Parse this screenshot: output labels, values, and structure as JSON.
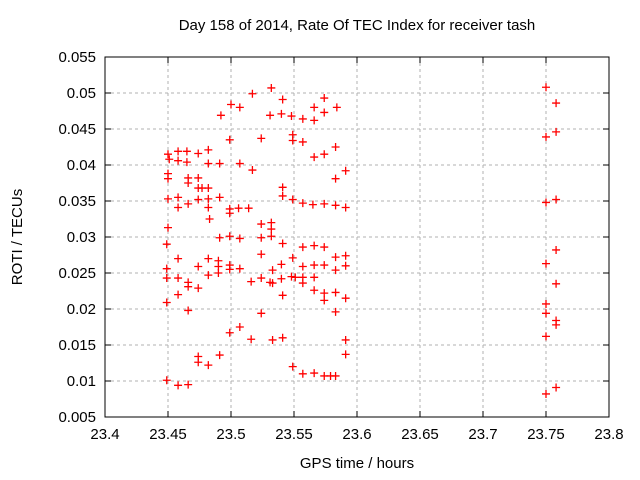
{
  "window": {
    "background": "#ffffff"
  },
  "chart_data": {
    "type": "scatter",
    "title": "Day 158 of 2014, Rate Of TEC Index for receiver tash",
    "xlabel": "GPS time / hours",
    "ylabel": "ROTI / TECUs",
    "xlim": [
      23.4,
      23.8
    ],
    "ylim": [
      0.005,
      0.055
    ],
    "grid": true,
    "legend": "none",
    "marker": "plus",
    "colors": {
      "marker": "#ff0000",
      "grid": "#b0b0b0",
      "frame": "#000000",
      "text": "#000000",
      "background": "#ffffff"
    },
    "xticks": [
      {
        "value": 23.4,
        "label": "23.4"
      },
      {
        "value": 23.45,
        "label": "23.45"
      },
      {
        "value": 23.5,
        "label": "23.5"
      },
      {
        "value": 23.55,
        "label": "23.55"
      },
      {
        "value": 23.6,
        "label": "23.6"
      },
      {
        "value": 23.65,
        "label": "23.65"
      },
      {
        "value": 23.7,
        "label": "23.7"
      },
      {
        "value": 23.75,
        "label": "23.75"
      },
      {
        "value": 23.8,
        "label": "23.8"
      }
    ],
    "yticks": [
      {
        "value": 0.005,
        "label": "0.005"
      },
      {
        "value": 0.01,
        "label": "0.01"
      },
      {
        "value": 0.015,
        "label": "0.015"
      },
      {
        "value": 0.02,
        "label": "0.02"
      },
      {
        "value": 0.025,
        "label": "0.025"
      },
      {
        "value": 0.03,
        "label": "0.03"
      },
      {
        "value": 0.035,
        "label": "0.035"
      },
      {
        "value": 0.04,
        "label": "0.04"
      },
      {
        "value": 0.045,
        "label": "0.045"
      },
      {
        "value": 0.05,
        "label": "0.05"
      },
      {
        "value": 0.055,
        "label": "0.055"
      }
    ],
    "series": [
      {
        "points": [
          [
            23.517,
            0.0499
          ],
          [
            23.5,
            0.0484
          ],
          [
            23.507,
            0.048
          ],
          [
            23.492,
            0.0469
          ],
          [
            23.499,
            0.0435
          ],
          [
            23.45,
            0.0415
          ],
          [
            23.458,
            0.0419
          ],
          [
            23.465,
            0.0419
          ],
          [
            23.474,
            0.0416
          ],
          [
            23.482,
            0.0421
          ],
          [
            23.451,
            0.0408
          ],
          [
            23.458,
            0.0406
          ],
          [
            23.465,
            0.0404
          ],
          [
            23.482,
            0.0402
          ],
          [
            23.491,
            0.0402
          ],
          [
            23.507,
            0.0402
          ],
          [
            23.517,
            0.0393
          ],
          [
            23.45,
            0.0388
          ],
          [
            23.45,
            0.0381
          ],
          [
            23.466,
            0.0382
          ],
          [
            23.466,
            0.0375
          ],
          [
            23.474,
            0.0382
          ],
          [
            23.474,
            0.0368
          ],
          [
            23.477,
            0.0368
          ],
          [
            23.482,
            0.0368
          ],
          [
            23.45,
            0.0353
          ],
          [
            23.458,
            0.0355
          ],
          [
            23.474,
            0.0352
          ],
          [
            23.482,
            0.0353
          ],
          [
            23.491,
            0.0355
          ],
          [
            23.466,
            0.0346
          ],
          [
            23.458,
            0.0341
          ],
          [
            23.499,
            0.0339
          ],
          [
            23.499,
            0.0333
          ],
          [
            23.506,
            0.034
          ],
          [
            23.514,
            0.034
          ],
          [
            23.483,
            0.0325
          ],
          [
            23.45,
            0.0313
          ],
          [
            23.482,
            0.0341
          ],
          [
            23.532,
            0.0507
          ],
          [
            23.541,
            0.0491
          ],
          [
            23.574,
            0.0493
          ],
          [
            23.566,
            0.048
          ],
          [
            23.574,
            0.0473
          ],
          [
            23.584,
            0.048
          ],
          [
            23.531,
            0.0469
          ],
          [
            23.54,
            0.0471
          ],
          [
            23.548,
            0.0468
          ],
          [
            23.557,
            0.0464
          ],
          [
            23.566,
            0.0462
          ],
          [
            23.524,
            0.0437
          ],
          [
            23.549,
            0.0442
          ],
          [
            23.549,
            0.0434
          ],
          [
            23.557,
            0.0432
          ],
          [
            23.583,
            0.0425
          ],
          [
            23.566,
            0.0411
          ],
          [
            23.574,
            0.0415
          ],
          [
            23.591,
            0.0392
          ],
          [
            23.583,
            0.0381
          ],
          [
            23.541,
            0.0369
          ],
          [
            23.541,
            0.0357
          ],
          [
            23.549,
            0.0352
          ],
          [
            23.557,
            0.0347
          ],
          [
            23.565,
            0.0345
          ],
          [
            23.574,
            0.0346
          ],
          [
            23.583,
            0.0344
          ],
          [
            23.591,
            0.0341
          ],
          [
            23.524,
            0.0318
          ],
          [
            23.532,
            0.032
          ],
          [
            23.532,
            0.0311
          ],
          [
            23.491,
            0.0299
          ],
          [
            23.499,
            0.0301
          ],
          [
            23.507,
            0.0298
          ],
          [
            23.449,
            0.029
          ],
          [
            23.458,
            0.027
          ],
          [
            23.449,
            0.0256
          ],
          [
            23.449,
            0.0243
          ],
          [
            23.458,
            0.0243
          ],
          [
            23.466,
            0.0237
          ],
          [
            23.466,
            0.0231
          ],
          [
            23.474,
            0.0259
          ],
          [
            23.474,
            0.0229
          ],
          [
            23.482,
            0.027
          ],
          [
            23.482,
            0.0247
          ],
          [
            23.49,
            0.0267
          ],
          [
            23.49,
            0.0259
          ],
          [
            23.49,
            0.025
          ],
          [
            23.499,
            0.0261
          ],
          [
            23.499,
            0.0255
          ],
          [
            23.507,
            0.0256
          ],
          [
            23.516,
            0.0238
          ],
          [
            23.458,
            0.022
          ],
          [
            23.449,
            0.0209
          ],
          [
            23.466,
            0.0198
          ],
          [
            23.507,
            0.0175
          ],
          [
            23.499,
            0.0167
          ],
          [
            23.516,
            0.0158
          ],
          [
            23.474,
            0.0134
          ],
          [
            23.474,
            0.0126
          ],
          [
            23.482,
            0.0122
          ],
          [
            23.491,
            0.0136
          ],
          [
            23.449,
            0.0101
          ],
          [
            23.458,
            0.0094
          ],
          [
            23.466,
            0.0095
          ],
          [
            23.524,
            0.0299
          ],
          [
            23.532,
            0.0301
          ],
          [
            23.541,
            0.0291
          ],
          [
            23.524,
            0.0276
          ],
          [
            23.557,
            0.0286
          ],
          [
            23.566,
            0.0288
          ],
          [
            23.574,
            0.0286
          ],
          [
            23.549,
            0.0271
          ],
          [
            23.54,
            0.0262
          ],
          [
            23.533,
            0.0254
          ],
          [
            23.557,
            0.0259
          ],
          [
            23.566,
            0.0261
          ],
          [
            23.574,
            0.0261
          ],
          [
            23.583,
            0.0272
          ],
          [
            23.591,
            0.0274
          ],
          [
            23.591,
            0.026
          ],
          [
            23.583,
            0.0254
          ],
          [
            23.524,
            0.0243
          ],
          [
            23.531,
            0.0237
          ],
          [
            23.533,
            0.0236
          ],
          [
            23.54,
            0.0242
          ],
          [
            23.548,
            0.0245
          ],
          [
            23.551,
            0.0244
          ],
          [
            23.557,
            0.0244
          ],
          [
            23.557,
            0.0236
          ],
          [
            23.566,
            0.0244
          ],
          [
            23.541,
            0.0219
          ],
          [
            23.566,
            0.0226
          ],
          [
            23.574,
            0.0222
          ],
          [
            23.574,
            0.0212
          ],
          [
            23.583,
            0.0223
          ],
          [
            23.591,
            0.0215
          ],
          [
            23.583,
            0.0196
          ],
          [
            23.524,
            0.0194
          ],
          [
            23.533,
            0.0157
          ],
          [
            23.541,
            0.016
          ],
          [
            23.591,
            0.0157
          ],
          [
            23.591,
            0.0137
          ],
          [
            23.549,
            0.012
          ],
          [
            23.557,
            0.011
          ],
          [
            23.566,
            0.0111
          ],
          [
            23.574,
            0.0107
          ],
          [
            23.579,
            0.0107
          ],
          [
            23.583,
            0.0107
          ],
          [
            23.75,
            0.0508
          ],
          [
            23.758,
            0.0486
          ],
          [
            23.758,
            0.0446
          ],
          [
            23.75,
            0.0439
          ],
          [
            23.758,
            0.0352
          ],
          [
            23.75,
            0.0348
          ],
          [
            23.758,
            0.0282
          ],
          [
            23.75,
            0.0263
          ],
          [
            23.758,
            0.0235
          ],
          [
            23.75,
            0.0207
          ],
          [
            23.75,
            0.0194
          ],
          [
            23.758,
            0.0184
          ],
          [
            23.758,
            0.0178
          ],
          [
            23.75,
            0.0162
          ],
          [
            23.758,
            0.0091
          ],
          [
            23.75,
            0.0082
          ]
        ]
      }
    ]
  }
}
